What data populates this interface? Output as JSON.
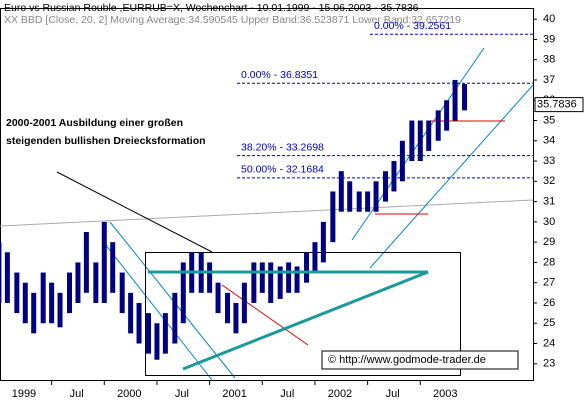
{
  "chart_data": {
    "type": "range-bar",
    "title": "Euro vs Russian Rouble ,EURRUB=X, Wochenchart - 10.01.1999 - 15.06.2003 - 35.7836",
    "subtitle": "XX BBD [Close, 20, 2] Moving Average:34.590545 Upper Band:36.523871 Lower Band:32.657219",
    "last_price": {
      "value": 35.7836,
      "label": "35.7836"
    },
    "annotation": [
      "2000-2001 Ausbildung einer großen",
      "steigenden bullishen Dreiecksformation"
    ],
    "copyright": "© http://www.godmode-trader.de",
    "levels": [
      {
        "label": "0.00% - 39.2561",
        "value": 39.2561
      },
      {
        "label": "0.00% - 36.8351",
        "value": 36.8351
      },
      {
        "label": "38.20% - 33.2698",
        "value": 33.2698
      },
      {
        "label": "50.00% - 32.1684",
        "value": 32.1684
      }
    ],
    "color": "#000080",
    "x": [
      1999.0,
      1999.08,
      1999.17,
      1999.25,
      1999.33,
      1999.42,
      1999.5,
      1999.58,
      1999.67,
      1999.75,
      1999.83,
      1999.92,
      2000.0,
      2000.08,
      2000.17,
      2000.25,
      2000.33,
      2000.42,
      2000.5,
      2000.58,
      2000.67,
      2000.75,
      2000.83,
      2000.92,
      2001.0,
      2001.08,
      2001.17,
      2001.25,
      2001.33,
      2001.42,
      2001.5,
      2001.58,
      2001.67,
      2001.75,
      2001.83,
      2001.92,
      2002.0,
      2002.08,
      2002.17,
      2002.25,
      2002.33,
      2002.42,
      2002.5,
      2002.58,
      2002.67,
      2002.75,
      2002.83,
      2002.92,
      2003.0,
      2003.08,
      2003.17,
      2003.25,
      2003.33,
      2003.42
    ],
    "low": [
      26,
      26,
      25.5,
      25,
      24.5,
      25,
      25,
      24.8,
      25.5,
      26,
      26.5,
      26,
      26,
      26.5,
      25.5,
      24.5,
      24,
      23.5,
      23.2,
      23.5,
      24,
      25,
      26.5,
      26.5,
      26.5,
      25.5,
      25,
      24.5,
      25,
      26,
      26.5,
      26,
      26.2,
      26.5,
      26.5,
      27,
      27.5,
      28,
      29,
      30.5,
      30.5,
      30.5,
      30.5,
      30.5,
      31,
      31.5,
      32,
      33,
      33,
      33.5,
      34,
      34.5,
      35,
      35.5
    ],
    "high": [
      29,
      28.5,
      27.5,
      27,
      26.5,
      27.5,
      27,
      26.5,
      27.5,
      28,
      29.5,
      28,
      30,
      29,
      27.5,
      26.5,
      26,
      25.5,
      25,
      25.5,
      26.5,
      28,
      28.5,
      28.5,
      28,
      27,
      26.5,
      26,
      27,
      28,
      28,
      28,
      27.8,
      28,
      27.8,
      28.5,
      29,
      30,
      31.5,
      32.5,
      32,
      31.5,
      31.5,
      32,
      32.5,
      33,
      34,
      35,
      35,
      35,
      35.5,
      36,
      37,
      36.8
    ],
    "xlim": [
      1999.01,
      2004.07
    ],
    "xticks": [
      1999,
      {
        "value": 1999.5,
        "label": "Jul"
      },
      2000,
      {
        "value": 2000.5,
        "label": "Jul"
      },
      2001,
      {
        "value": 2001.5,
        "label": "Jul"
      },
      2002,
      {
        "value": 2002.5,
        "label": "Jul"
      },
      2003
    ],
    "ylim": [
      22.2,
      40.55
    ],
    "yticks": [
      23,
      24,
      25,
      26,
      27,
      28,
      29,
      30,
      31,
      32,
      33,
      34,
      35,
      36,
      37,
      38,
      39,
      40
    ],
    "y_axis_side": "right"
  }
}
